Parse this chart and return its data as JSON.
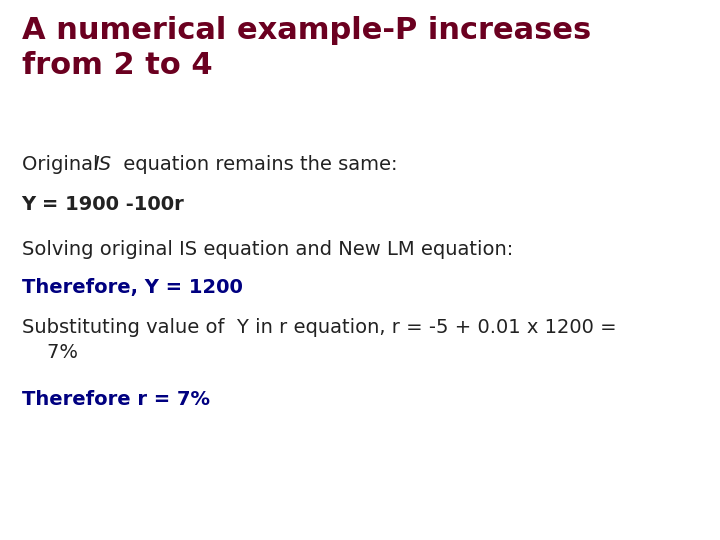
{
  "title_line1": "A numerical example-P increases",
  "title_line2": "from 2 to 4",
  "title_color": "#6B0020",
  "title_fontsize": 22,
  "line1_normal1": "Original ",
  "line1_italic": "IS",
  "line1_normal2": " equation remains the same:",
  "line_color": "#222222",
  "line_fontsize": 14,
  "line2_text": "Y = 1900 -100r",
  "line3_text": "Solving original IS equation and New LM equation:",
  "line4_text": "Therefore, Y = 1200",
  "line4_color": "#000080",
  "line5_text": "Substituting value of  Y in r equation, r = -5 + 0.01 x 1200 =\n    7%",
  "line6_text": "Therefore r = 7%",
  "line6_color": "#000080",
  "bold_color": "#222222",
  "navy_color": "#000080",
  "bg_color": "#ffffff",
  "fig_width": 7.2,
  "fig_height": 5.4,
  "dpi": 100
}
